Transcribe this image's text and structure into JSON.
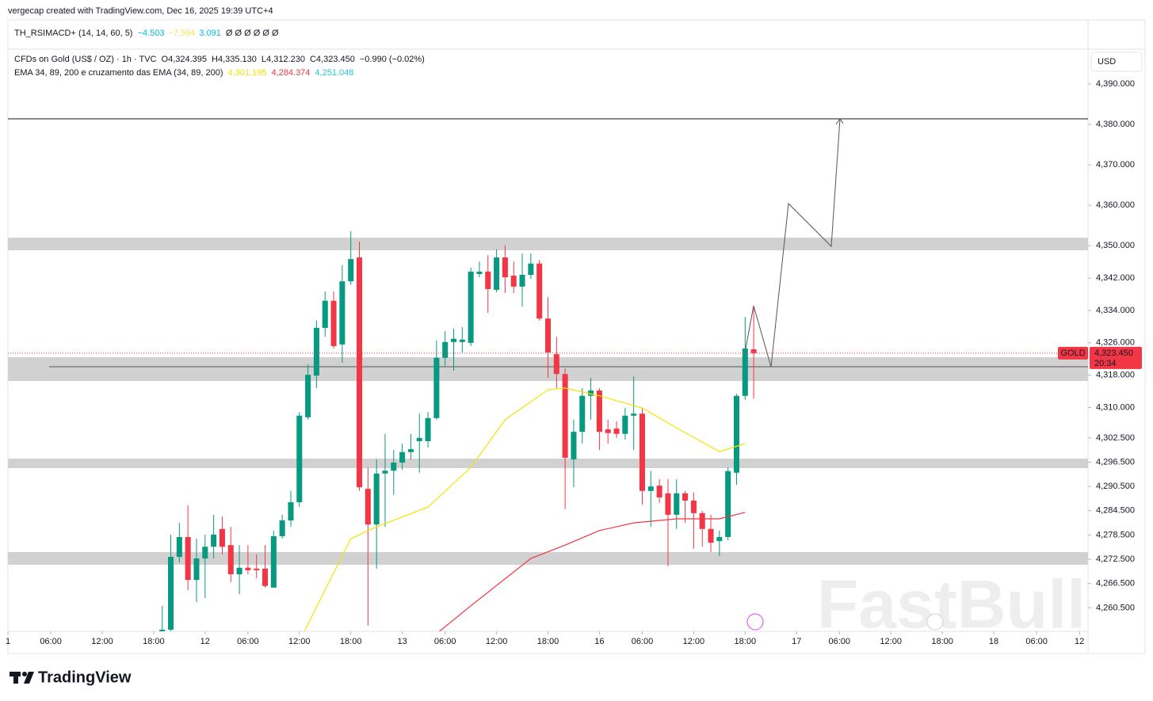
{
  "header": {
    "attribution": "vergecap created with TradingView.com, Dec 16, 2025 19:39 UTC+4"
  },
  "indicator": {
    "name": "TH_RSIMACD+ (14, 14, 60, 5)",
    "values": [
      {
        "text": "−4.503",
        "color": "#00bcd4"
      },
      {
        "text": "−7.594",
        "color": "#f7e35a"
      },
      {
        "text": "3.091",
        "color": "#00bcd4"
      }
    ],
    "placeholders": "Ø Ø Ø Ø Ø Ø"
  },
  "legend": {
    "symbol": "CFDs on Gold (US$ / OZ) · 1h · TVC",
    "ohlc": [
      "O4,324.395",
      "H4,335.130",
      "L4,312.230",
      "C4,323.450"
    ],
    "change": "−0.990 (−0.02%)",
    "ema_title": "EMA 34, 89, 200 e cruzamento das EMA (34, 89, 200)",
    "ema_values": [
      {
        "text": "4,301.195",
        "color": "#f5e400"
      },
      {
        "text": "4,284.374",
        "color": "#f23645"
      },
      {
        "text": "4,251.048",
        "color": "#26c6da"
      }
    ]
  },
  "currency": "USD",
  "brand": "TradingView",
  "watermark": "FastBull",
  "chart_data": {
    "type": "candlestick",
    "up_color": "#089981",
    "down_color": "#f23645",
    "x": [
      0,
      1,
      2,
      3,
      4,
      5,
      6,
      7,
      8,
      9,
      10,
      11,
      12,
      13,
      14,
      15,
      16,
      17,
      18,
      19,
      20,
      21,
      22,
      23,
      24,
      25,
      26,
      27,
      28,
      29,
      30,
      31,
      32,
      33,
      34,
      35,
      36,
      37,
      38,
      39,
      40,
      41,
      42,
      43,
      44,
      45,
      46,
      47,
      48,
      49,
      50,
      51,
      52,
      53,
      54,
      55,
      56,
      57,
      58,
      59,
      60,
      61,
      62,
      63,
      64,
      65,
      66,
      67,
      68,
      69
    ],
    "open": [
      4254.7,
      4255.1,
      4273.1,
      4278.0,
      4267.4,
      4272.7,
      4275.6,
      4280.0,
      4276.0,
      4268.8,
      4270.4,
      4270.2,
      4270.2,
      4265.5,
      4278.2,
      4282.1,
      4286.6,
      4307.6,
      4317.9,
      4329.7,
      4336.4,
      4325.6,
      4341.2,
      4347.1,
      4289.9,
      4281.1,
      4293.7,
      4294.4,
      4296.4,
      4299.0,
      4301.7,
      4301.7,
      4307.4,
      4322.3,
      4326.2,
      4326.2,
      4326.0,
      4343.0,
      4343.6,
      4339.1,
      4347.1,
      4342.6,
      4339.9,
      4342.8,
      4345.6,
      4332.0,
      4323.2,
      4318.3,
      4297.2,
      4304.0,
      4312.9,
      4314.2,
      4304.6,
      4304.8,
      4303.5,
      4308.0,
      4308.5,
      4289.4,
      4290.7,
      4288.8,
      4283.5,
      4288.8,
      4287.0,
      4283.9,
      4280.0,
      4277.0,
      4278.0,
      4293.9,
      4312.9,
      4324.395
    ],
    "high": [
      4261.0,
      4278.6,
      4281.5,
      4285.8,
      4277.6,
      4278.6,
      4283.5,
      4283.1,
      4280.5,
      4276.0,
      4276.0,
      4273.7,
      4276.0,
      4279.6,
      4283.5,
      4289.4,
      4308.9,
      4320.7,
      4331.5,
      4338.7,
      4338.7,
      4345.2,
      4353.6,
      4351.0,
      4295.2,
      4297.2,
      4303.5,
      4299.5,
      4301.1,
      4303.5,
      4308.5,
      4308.9,
      4326.6,
      4328.9,
      4329.5,
      4329.9,
      4344.6,
      4346.1,
      4347.7,
      4349.1,
      4350.1,
      4346.1,
      4348.1,
      4348.1,
      4346.5,
      4337.3,
      4327.5,
      4319.7,
      4307.0,
      4314.8,
      4317.4,
      4314.8,
      4307.0,
      4306.6,
      4309.9,
      4317.7,
      4309.9,
      4294.3,
      4292.3,
      4292.3,
      4292.3,
      4289.4,
      4289.0,
      4284.5,
      4283.5,
      4279.6,
      4295.2,
      4313.4,
      4332.4,
      4335.13
    ],
    "low": [
      4254.7,
      4254.7,
      4271.7,
      4264.9,
      4261.9,
      4262.9,
      4272.7,
      4273.7,
      4266.8,
      4263.9,
      4268.8,
      4267.8,
      4265.5,
      4265.5,
      4277.6,
      4280.5,
      4285.4,
      4307.0,
      4314.8,
      4327.5,
      4324.6,
      4321.1,
      4340.3,
      4289.4,
      4256.1,
      4270.2,
      4280.5,
      4288.4,
      4294.6,
      4297.2,
      4293.9,
      4300.1,
      4307.0,
      4320.3,
      4319.1,
      4323.6,
      4325.2,
      4342.2,
      4333.4,
      4338.5,
      4338.3,
      4338.3,
      4335.0,
      4341.8,
      4331.5,
      4317.4,
      4314.8,
      4284.9,
      4290.3,
      4301.1,
      4307.0,
      4299.5,
      4301.1,
      4302.5,
      4302.1,
      4299.5,
      4286.0,
      4280.5,
      4286.4,
      4270.8,
      4280.0,
      4281.5,
      4275.1,
      4275.6,
      4274.3,
      4273.3,
      4277.2,
      4290.9,
      4311.9,
      4312.23
    ],
    "close": [
      4255.1,
      4273.1,
      4278.0,
      4267.4,
      4272.7,
      4275.6,
      4278.6,
      4275.6,
      4268.8,
      4270.4,
      4269.8,
      4269.8,
      4265.9,
      4278.2,
      4282.1,
      4286.6,
      4308.0,
      4318.1,
      4329.7,
      4336.4,
      4325.2,
      4341.2,
      4346.7,
      4290.3,
      4281.1,
      4293.7,
      4294.4,
      4296.4,
      4299.0,
      4299.7,
      4302.5,
      4307.4,
      4322.3,
      4326.2,
      4327.0,
      4326.8,
      4343.6,
      4343.6,
      4339.3,
      4347.1,
      4342.2,
      4339.9,
      4342.8,
      4345.6,
      4332.0,
      4323.6,
      4318.3,
      4297.6,
      4304.0,
      4312.9,
      4314.2,
      4304.0,
      4303.7,
      4303.5,
      4308.0,
      4308.5,
      4289.4,
      4290.5,
      4287.8,
      4283.5,
      4288.8,
      4287.0,
      4283.9,
      4280.0,
      4276.6,
      4278.0,
      4294.3,
      4312.9,
      4324.6,
      4323.45
    ],
    "series": [
      {
        "color": "#f5e400",
        "x": [
          16,
          22,
          25,
          31,
          36,
          40,
          45,
          47,
          51,
          56,
          60,
          65,
          68
        ],
        "values": [
          4252.2,
          4277.6,
          4280.5,
          4285.4,
          4295.2,
          4307.0,
          4314.4,
          4314.8,
          4312.9,
          4309.9,
          4305.0,
          4299.1,
          4301.1
        ]
      },
      {
        "color": "#f23645",
        "x": [
          32,
          36,
          43,
          47,
          51,
          55,
          60,
          65,
          68
        ],
        "values": [
          4254.1,
          4261.0,
          4272.7,
          4276.0,
          4279.6,
          4281.5,
          4282.5,
          4282.5,
          4284.1
        ]
      }
    ],
    "xlim": [
      -18,
      108
    ],
    "ylim": [
      4254.7,
      4398.6
    ],
    "xticks": [
      {
        "value": -18,
        "label": "1"
      },
      {
        "value": -13,
        "label": "06:00"
      },
      {
        "value": -7,
        "label": "12:00"
      },
      {
        "value": -1,
        "label": "18:00"
      },
      {
        "value": 5,
        "label": "12"
      },
      {
        "value": 10,
        "label": "06:00"
      },
      {
        "value": 16,
        "label": "12:00"
      },
      {
        "value": 22,
        "label": "18:00"
      },
      {
        "value": 28,
        "label": "13"
      },
      {
        "value": 33,
        "label": "06:00"
      },
      {
        "value": 39,
        "label": "12:00"
      },
      {
        "value": 45,
        "label": "18:00"
      },
      {
        "value": 51,
        "label": "16"
      },
      {
        "value": 56,
        "label": "06:00"
      },
      {
        "value": 62,
        "label": "12:00"
      },
      {
        "value": 68,
        "label": "18:00"
      },
      {
        "value": 74,
        "label": "17"
      },
      {
        "value": 79,
        "label": "06:00"
      },
      {
        "value": 85,
        "label": "12:00"
      },
      {
        "value": 91,
        "label": "18:00"
      },
      {
        "value": 97,
        "label": "18"
      },
      {
        "value": 102,
        "label": "06:00"
      },
      {
        "value": 107,
        "label": "12"
      }
    ],
    "yticks": [
      {
        "value": 4390,
        "label": "4,390.000"
      },
      {
        "value": 4380,
        "label": "4,380.000"
      },
      {
        "value": 4370,
        "label": "4,370.000"
      },
      {
        "value": 4360,
        "label": "4,360.000"
      },
      {
        "value": 4350,
        "label": "4,350.000"
      },
      {
        "value": 4342,
        "label": "4,342.000"
      },
      {
        "value": 4334,
        "label": "4,334.000"
      },
      {
        "value": 4326,
        "label": "4,326.000"
      },
      {
        "value": 4318,
        "label": "4,318.000"
      },
      {
        "value": 4310,
        "label": "4,310.000"
      },
      {
        "value": 4302.5,
        "label": "4,302.500"
      },
      {
        "value": 4296.5,
        "label": "4,296.500"
      },
      {
        "value": 4290.5,
        "label": "4,290.500"
      },
      {
        "value": 4284.5,
        "label": "4,284.500"
      },
      {
        "value": 4278.5,
        "label": "4,278.500"
      },
      {
        "value": 4272.5,
        "label": "4,272.500"
      },
      {
        "value": 4266.5,
        "label": "4,266.500"
      },
      {
        "value": 4260.5,
        "label": "4,260.500"
      }
    ],
    "grid": false,
    "last_price": {
      "value": 4323.45,
      "label": "4,323.450",
      "symbol": "GOLD",
      "countdown": "20:34",
      "color": "#f23645"
    }
  }
}
